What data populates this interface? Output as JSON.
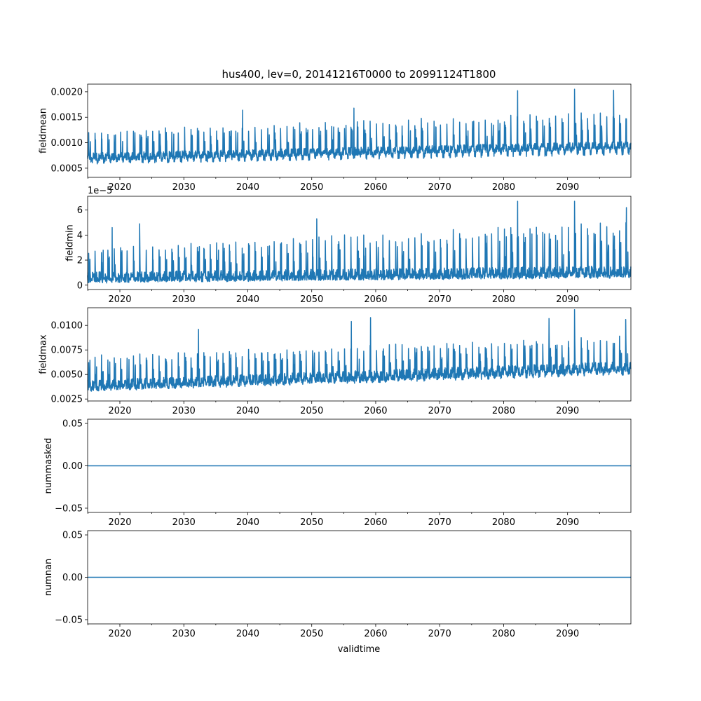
{
  "figure": {
    "title": "hus400, lev=0, 20141216T0000 to 20991124T1800",
    "xlabel": "validtime"
  },
  "chart_data": [
    {
      "type": "line",
      "name": "fieldmean",
      "ylabel": "fieldmean",
      "xlim": [
        2014.96,
        2099.9
      ],
      "ylim": [
        0.00032,
        0.00215
      ],
      "yticks": [
        0.0005,
        0.001,
        0.0015,
        0.002
      ],
      "ytick_labels": [
        "0.0005",
        "0.0010",
        "0.0015",
        "0.0020"
      ],
      "offset_text": "",
      "xticks": [
        2020,
        2030,
        2040,
        2050,
        2060,
        2070,
        2080,
        2090
      ],
      "xtick_labels": [
        "2020",
        "2030",
        "2040",
        "2050",
        "2060",
        "2070",
        "2080",
        "2090"
      ],
      "baseline_start": 0.00072,
      "baseline_end": 0.00095,
      "peak_start": 0.00128,
      "peak_end": 0.00168,
      "trough_start": 0.00052,
      "trough_end": 0.00068,
      "noise": 8e-05,
      "extreme_peaks": [
        [
          2039.2,
          0.00164
        ],
        [
          2056.6,
          0.00168
        ],
        [
          2082.2,
          0.00202
        ],
        [
          2091.1,
          0.00205
        ],
        [
          2097.2,
          0.00203
        ]
      ]
    },
    {
      "type": "line",
      "name": "fieldmin",
      "ylabel": "fieldmin",
      "xlim": [
        2014.96,
        2099.9
      ],
      "ylim": [
        -0.35,
        7.1
      ],
      "yticks": [
        0,
        2,
        4,
        6
      ],
      "ytick_labels": [
        "0",
        "2",
        "4",
        "6"
      ],
      "offset_text": "1e−5",
      "xticks": [
        2020,
        2030,
        2040,
        2050,
        2060,
        2070,
        2080,
        2090
      ],
      "xtick_labels": [
        "2020",
        "2030",
        "2040",
        "2050",
        "2060",
        "2070",
        "2080",
        "2090"
      ],
      "baseline_start": 0.6,
      "baseline_end": 1.1,
      "peak_start": 3.3,
      "peak_end": 5.4,
      "trough_start": 0.15,
      "trough_end": 0.3,
      "noise": 0.45,
      "extreme_peaks": [
        [
          2018.8,
          4.6
        ],
        [
          2023.1,
          4.9
        ],
        [
          2050.8,
          5.3
        ],
        [
          2082.2,
          6.7
        ],
        [
          2091.1,
          6.7
        ],
        [
          2099.2,
          6.2
        ]
      ]
    },
    {
      "type": "line",
      "name": "fieldmax",
      "ylabel": "fieldmax",
      "xlim": [
        2014.96,
        2099.9
      ],
      "ylim": [
        0.0023,
        0.0118
      ],
      "yticks": [
        0.0025,
        0.005,
        0.0075,
        0.01
      ],
      "ytick_labels": [
        "0.0025",
        "0.0050",
        "0.0075",
        "0.0100"
      ],
      "offset_text": "",
      "xticks": [
        2020,
        2030,
        2040,
        2050,
        2060,
        2070,
        2080,
        2090
      ],
      "xtick_labels": [
        "2020",
        "2030",
        "2040",
        "2050",
        "2060",
        "2070",
        "2080",
        "2090"
      ],
      "baseline_start": 0.0039,
      "baseline_end": 0.0058,
      "peak_start": 0.0072,
      "peak_end": 0.0092,
      "trough_start": 0.003,
      "trough_end": 0.0046,
      "noise": 0.00055,
      "extreme_peaks": [
        [
          2032.3,
          0.0096
        ],
        [
          2056.2,
          0.0104
        ],
        [
          2059.2,
          0.0108
        ],
        [
          2087.1,
          0.0107
        ],
        [
          2091.1,
          0.0116
        ],
        [
          2099.1,
          0.0106
        ]
      ]
    },
    {
      "type": "line",
      "name": "nummasked",
      "ylabel": "nummasked",
      "xlim": [
        2014.96,
        2099.9
      ],
      "ylim": [
        -0.055,
        0.055
      ],
      "yticks": [
        -0.05,
        0.0,
        0.05
      ],
      "ytick_labels": [
        "−0.05",
        "0.00",
        "0.05"
      ],
      "offset_text": "",
      "xticks": [
        2020,
        2030,
        2040,
        2050,
        2060,
        2070,
        2080,
        2090
      ],
      "xtick_labels": [
        "2020",
        "2030",
        "2040",
        "2050",
        "2060",
        "2070",
        "2080",
        "2090"
      ],
      "constant": 0.0
    },
    {
      "type": "line",
      "name": "numnan",
      "ylabel": "numnan",
      "xlim": [
        2014.96,
        2099.9
      ],
      "ylim": [
        -0.055,
        0.055
      ],
      "yticks": [
        -0.05,
        0.0,
        0.05
      ],
      "ytick_labels": [
        "−0.05",
        "0.00",
        "0.05"
      ],
      "offset_text": "",
      "xticks": [
        2020,
        2030,
        2040,
        2050,
        2060,
        2070,
        2080,
        2090
      ],
      "xtick_labels": [
        "2020",
        "2030",
        "2040",
        "2050",
        "2060",
        "2070",
        "2080",
        "2090"
      ],
      "constant": 0.0
    }
  ]
}
